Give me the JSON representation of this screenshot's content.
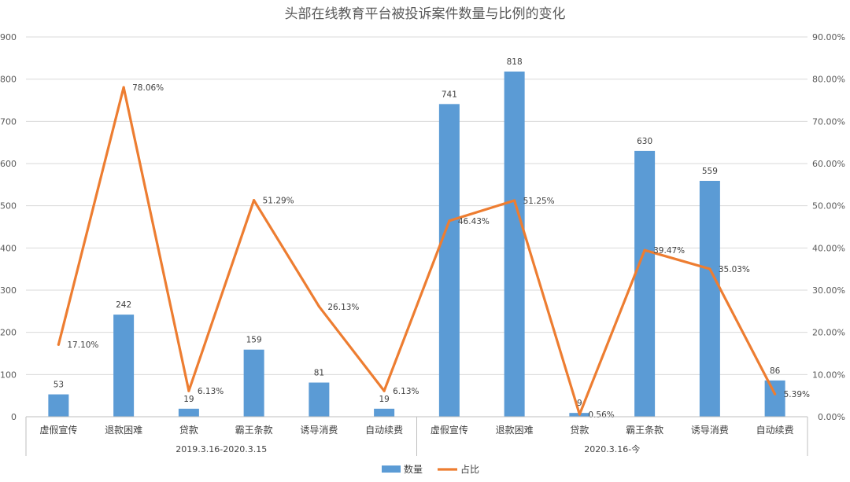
{
  "chart_data": {
    "type": "bar",
    "title": "头部在线教育平台被投诉案件数量与比例的变化",
    "groups": [
      {
        "label": "2019.3.16-2020.3.15",
        "categories": [
          "虚假宣传",
          "退款困难",
          "贷款",
          "霸王条款",
          "诱导消费",
          "自动续费"
        ]
      },
      {
        "label": "2020.3.16-今",
        "categories": [
          "虚假宣传",
          "退款困难",
          "贷款",
          "霸王条款",
          "诱导消费",
          "自动续费"
        ]
      }
    ],
    "series": [
      {
        "name": "数量",
        "type": "bar",
        "axis": "left",
        "color": "#5B9BD5",
        "values": [
          53,
          242,
          19,
          159,
          81,
          19,
          741,
          818,
          9,
          630,
          559,
          86
        ],
        "labels": [
          "53",
          "242",
          "19",
          "159",
          "81",
          "19",
          "741",
          "818",
          "9",
          "630",
          "559",
          "86"
        ]
      },
      {
        "name": "占比",
        "type": "line",
        "axis": "right",
        "color": "#ED7D31",
        "values": [
          17.1,
          78.06,
          6.13,
          51.29,
          26.13,
          6.13,
          46.43,
          51.25,
          0.56,
          39.47,
          35.03,
          5.39
        ],
        "labels": [
          "17.10%",
          "78.06%",
          "6.13%",
          "51.29%",
          "26.13%",
          "6.13%",
          "46.43%",
          "51.25%",
          "0.56%",
          "39.47%",
          "35.03%",
          "5.39%"
        ]
      }
    ],
    "ylim_left": [
      0,
      900
    ],
    "yticks_left": [
      "0",
      "100",
      "200",
      "300",
      "400",
      "500",
      "600",
      "700",
      "800",
      "900"
    ],
    "ylim_right": [
      0,
      90
    ],
    "yticks_right": [
      "0.00%",
      "10.00%",
      "20.00%",
      "30.00%",
      "40.00%",
      "50.00%",
      "60.00%",
      "70.00%",
      "80.00%",
      "90.00%"
    ],
    "grid": true,
    "legend_position": "bottom"
  }
}
